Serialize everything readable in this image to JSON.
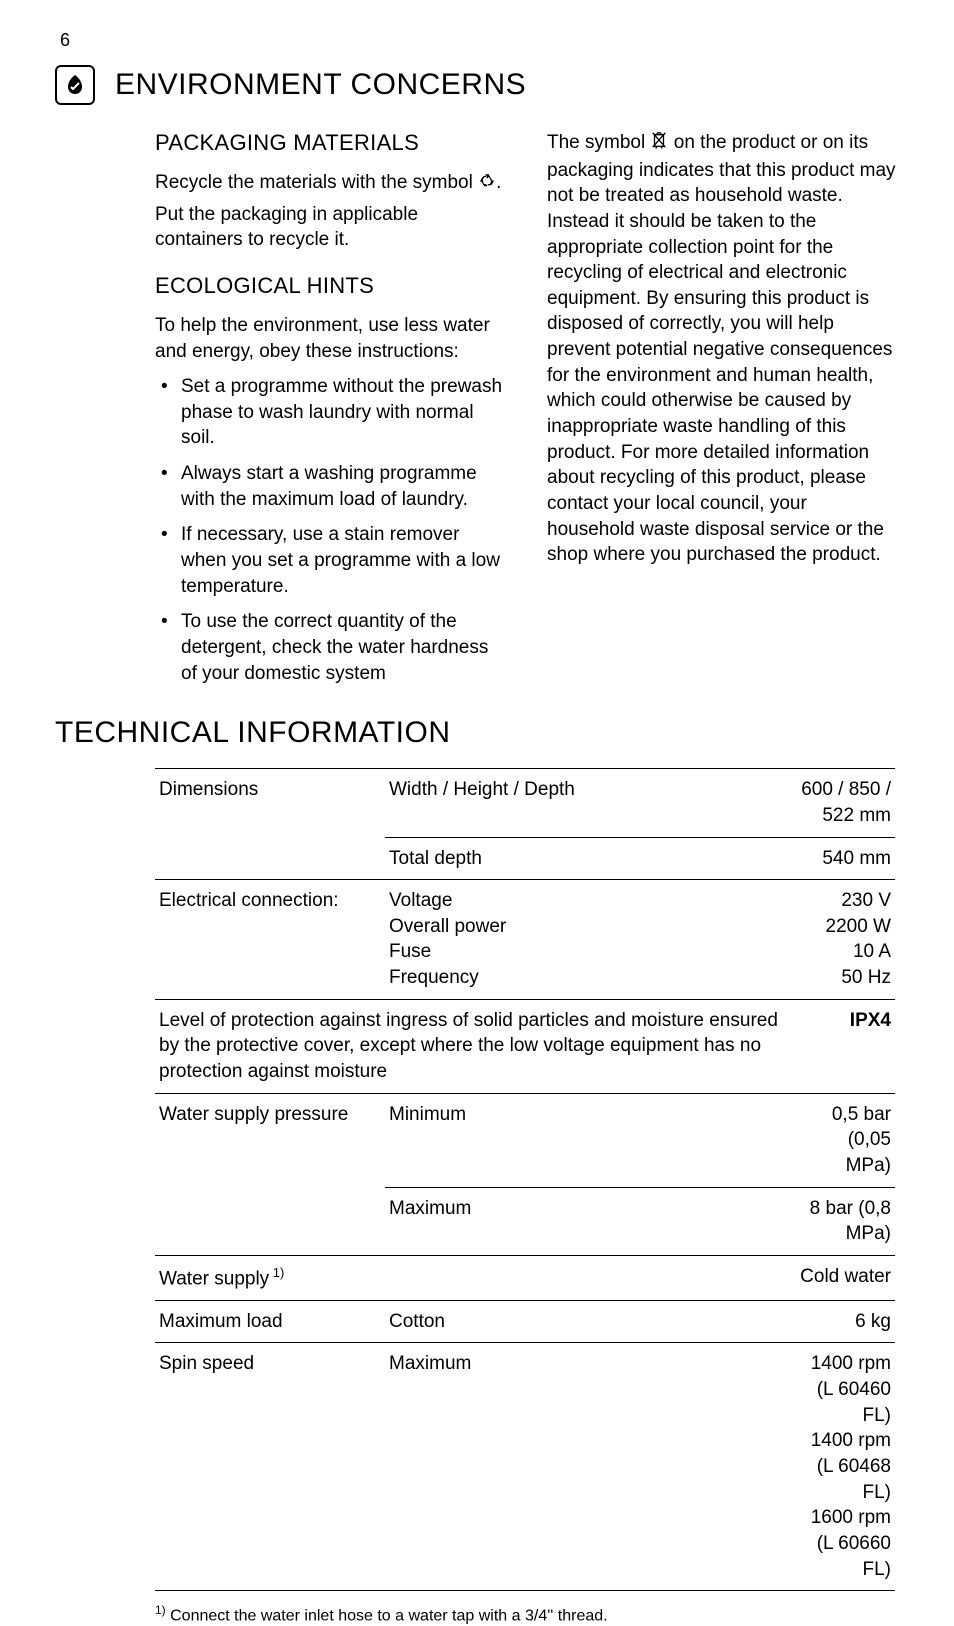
{
  "page_number": "6",
  "section_env": {
    "title": "ENVIRONMENT CONCERNS",
    "packaging": {
      "heading": "PACKAGING MATERIALS",
      "p1a": "Recycle the materials with the symbol",
      "p1b": ".",
      "p2": "Put the packaging in applicable containers to recycle it."
    },
    "eco": {
      "heading": "ECOLOGICAL HINTS",
      "intro": "To help the environment, use less water and energy, obey these instructions:",
      "bullets": [
        "Set a programme without the prewash phase to wash laundry with normal soil.",
        "Always start a washing programme with the maximum load of laundry.",
        "If necessary, use a stain remover when you set a programme with a low temperature.",
        "To use the correct quantity of the detergent, check the water hardness of your domestic system"
      ]
    },
    "weee": {
      "pre": "The symbol ",
      "post": " on the product or on its packaging indicates that this product may not be treated as household waste. Instead it should be taken to the appropriate collection point for the recycling of electrical and electronic equipment. By ensuring this product is disposed of correctly, you will help prevent potential negative consequences for the environment and human health, which could otherwise be caused by inappropriate waste handling of this product. For more detailed information about recycling of this product, please contact your local council, your household waste disposal service or the shop where you purchased the product."
    }
  },
  "section_tech": {
    "title": "TECHNICAL INFORMATION",
    "rows": [
      {
        "label": "Dimensions",
        "param": "Width / Height / Depth",
        "value": "600 / 850 / 522 mm"
      },
      {
        "label": "",
        "param": "Total depth",
        "value": "540 mm"
      },
      {
        "label": "Electrical connection:",
        "param": "Voltage\nOverall power\nFuse\nFrequency",
        "value": "230 V\n2200 W\n10 A\n50 Hz"
      },
      {
        "label_full": "Level of protection against ingress of solid particles and moisture ensured by the protective cover, except where the low voltage equipment has no protection against moisture",
        "value": "IPX4",
        "bold_value": true
      },
      {
        "label": "Water supply pressure",
        "param": "Minimum",
        "value": "0,5 bar (0,05 MPa)"
      },
      {
        "label": "",
        "param": "Maximum",
        "value": "8 bar (0,8 MPa)"
      },
      {
        "label": "Water supply",
        "label_sup": "1)",
        "param": "",
        "value": "Cold water"
      },
      {
        "label": "Maximum load",
        "param": "Cotton",
        "value": "6 kg"
      },
      {
        "label": "Spin speed",
        "param": "Maximum",
        "value": "1400 rpm (L 60460 FL)\n1400 rpm (L 60468 FL)\n1600 rpm (L 60660 FL)"
      }
    ],
    "footnote_sup": "1)",
    "footnote": " Connect the water inlet hose to a water tap with a 3/4'' thread."
  }
}
